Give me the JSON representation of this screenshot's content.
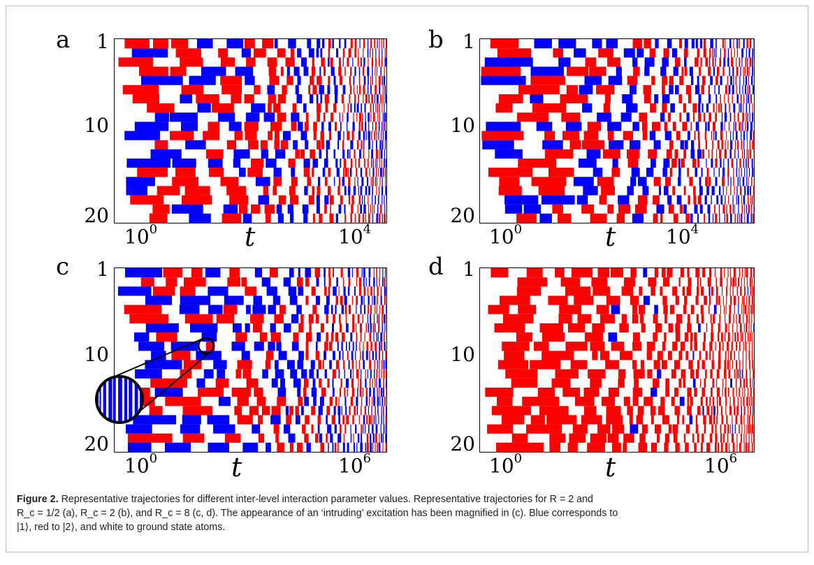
{
  "figure": {
    "caption_label": "Figure 2.",
    "caption_line1": "Representative trajectories for different inter-level interaction parameter values. Representative trajectories for R = 2 and",
    "caption_line2": "R_c = 1/2 (a), R_c = 2 (b), and R_c = 8 (c, d). The appearance of an ‘intruding’ excitation has been magnified in (c). Blue corresponds to",
    "caption_line3": "|1⟩, red to |2⟩, and white to ground state atoms."
  },
  "colors": {
    "state1": "#0000ff",
    "state2": "#ff0000",
    "ground": "#ffffff"
  },
  "chart_data": [
    {
      "type": "heatmap",
      "panel": "a",
      "ylabel_ticks": [
        "1",
        "10",
        "20"
      ],
      "xlabel": "t",
      "xtick_labels": [
        {
          "base": "10",
          "exp": "0"
        },
        {
          "base": "10",
          "exp": "4"
        }
      ],
      "rows": 20,
      "x_scale": "log",
      "density": 0.55,
      "blue_frac": 0.5,
      "seed": 11
    },
    {
      "type": "heatmap",
      "panel": "b",
      "ylabel_ticks": [
        "1",
        "10",
        "20"
      ],
      "xlabel": "t",
      "xtick_labels": [
        {
          "base": "10",
          "exp": "0"
        },
        {
          "base": "10",
          "exp": "4"
        }
      ],
      "rows": 20,
      "x_scale": "log",
      "density": 0.5,
      "blue_frac": 0.45,
      "seed": 23
    },
    {
      "type": "heatmap",
      "panel": "c",
      "ylabel_ticks": [
        "1",
        "10",
        "20"
      ],
      "xlabel": "t",
      "xtick_labels": [
        {
          "base": "10",
          "exp": "0"
        },
        {
          "base": "10",
          "exp": "6"
        }
      ],
      "rows": 20,
      "x_scale": "log",
      "density": 0.6,
      "blue_frac": 0.5,
      "seed": 37
    },
    {
      "type": "heatmap",
      "panel": "d",
      "ylabel_ticks": [
        "1",
        "10",
        "20"
      ],
      "xlabel": "t",
      "xtick_labels": [
        {
          "base": "10",
          "exp": "0"
        },
        {
          "base": "10",
          "exp": "6"
        }
      ],
      "rows": 20,
      "x_scale": "log",
      "density": 0.5,
      "blue_frac": 0.05,
      "seed": 53
    }
  ]
}
